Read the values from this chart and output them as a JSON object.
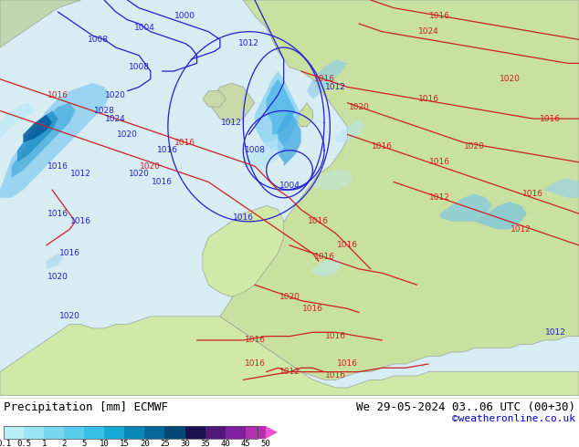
{
  "title": "Precipitation [mm] ECMWF",
  "date_text": "We 29-05-2024 03..06 UTC (00+30)",
  "credit_text": "©weatheronline.co.uk",
  "colorbar_tick_labels": [
    "0.1",
    "0.5",
    "1",
    "2",
    "5",
    "10",
    "15",
    "20",
    "25",
    "30",
    "35",
    "40",
    "45",
    "50"
  ],
  "colorbar_colors": [
    "#b8eef8",
    "#98e4f4",
    "#78d8f0",
    "#58ccec",
    "#38c0e8",
    "#18a8d8",
    "#0888b8",
    "#066898",
    "#044878",
    "#1a1050",
    "#501878",
    "#8020a0",
    "#b030b0",
    "#d840c0",
    "#f050d0"
  ],
  "ocean_color": "#d8ecf4",
  "land_europe_color": "#c8e0a0",
  "land_africa_color": "#d0e8a8",
  "land_iberia_color": "#d0e8a8",
  "ocean_atlantic_color": "#d8ecf4",
  "precip_light_color": "#b8e8f8",
  "precip_med_color": "#78c8e8",
  "precip_heavy_color": "#4098c8",
  "precip_vheavy_color": "#1060a0",
  "blue_contour_color": "#2020cc",
  "red_contour_color": "#cc2020",
  "title_fontsize": 9,
  "date_fontsize": 9,
  "credit_fontsize": 8,
  "label_fontsize": 6.5
}
